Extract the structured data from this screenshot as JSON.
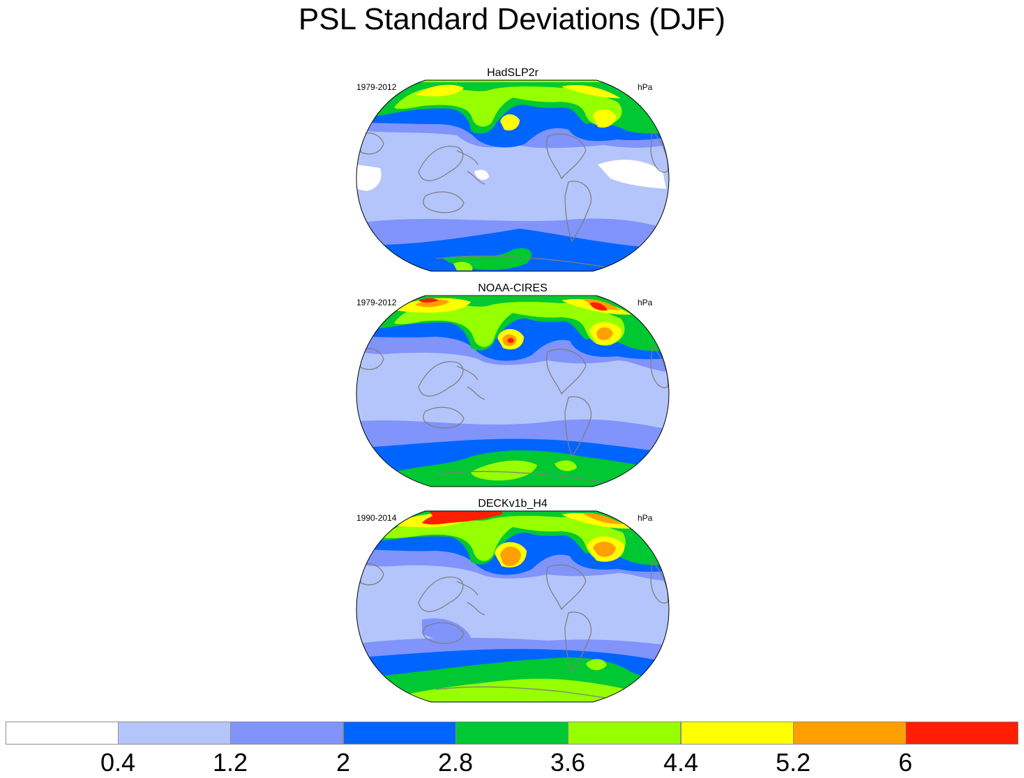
{
  "title": "PSL Standard Deviations (DJF)",
  "colors": {
    "levels": [
      "#ffffff",
      "#b4c5fb",
      "#8094fb",
      "#0064ff",
      "#00c832",
      "#96ff00",
      "#ffff00",
      "#ffa000",
      "#ff1e00"
    ],
    "coast": "#7f7f7f"
  },
  "panels": [
    {
      "name": "HadSLP2r",
      "years": "1979-2012",
      "units": "hPa"
    },
    {
      "name": "NOAA-CIRES",
      "years": "1979-2012",
      "units": "hPa"
    },
    {
      "name": "DECKv1b_H4",
      "years": "1990-2014",
      "units": "hPa"
    }
  ],
  "colorbar": {
    "labels": [
      "0.4",
      "1.2",
      "2",
      "2.8",
      "3.6",
      "4.4",
      "5.2",
      "6"
    ]
  }
}
